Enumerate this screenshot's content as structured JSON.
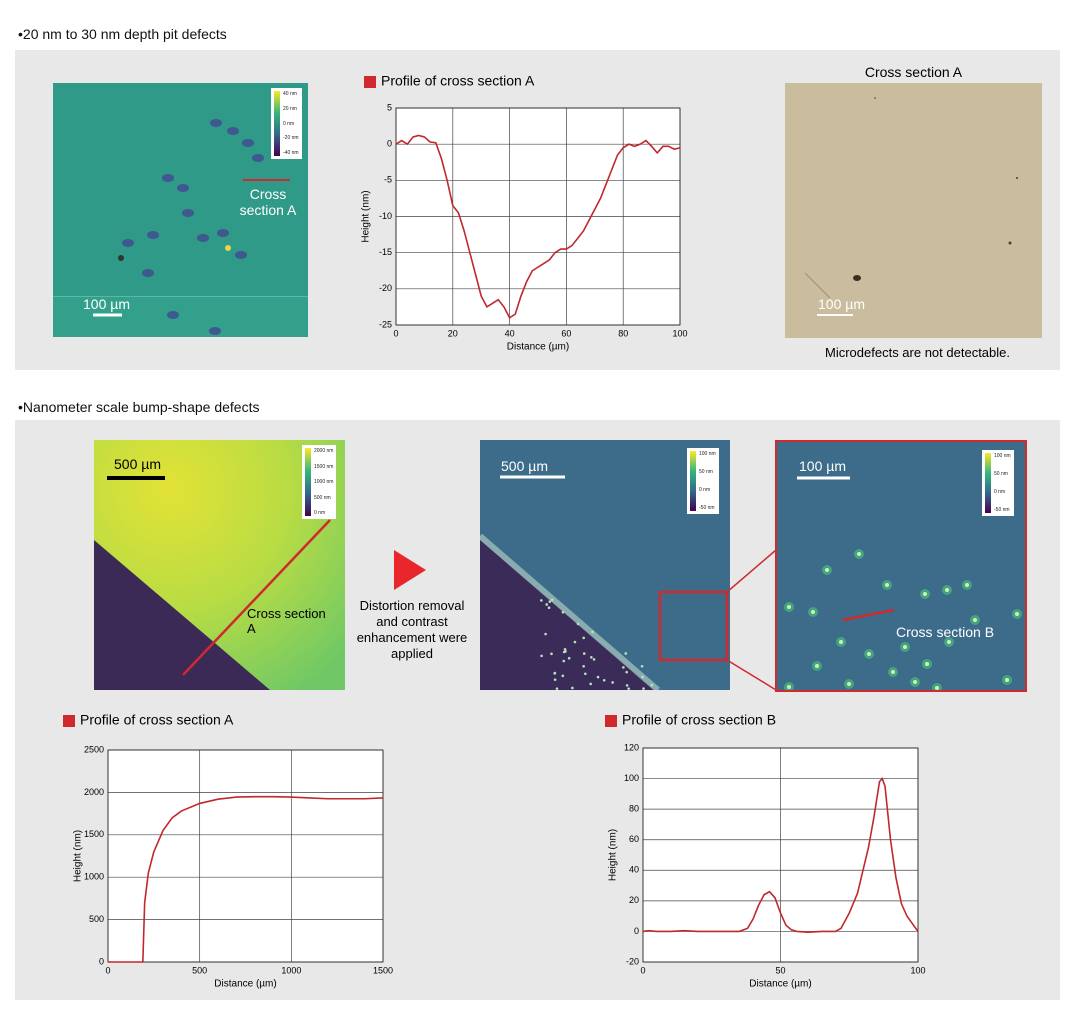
{
  "section1": {
    "heading": "•20 nm to 30 nm depth pit defects",
    "afm_image": {
      "colorbar": [
        "40 nm",
        "20 nm",
        "0 nm",
        "-20 nm",
        "-40 nm"
      ],
      "annotation": "Cross section A",
      "scale_bar": "100 µm"
    },
    "optical_image": {
      "title": "Cross section A",
      "scale_bar": "100 µm",
      "caption": "Microdefects are not detectable."
    }
  },
  "section2": {
    "heading": "•Nanometer scale bump-shape defects",
    "raw_image": {
      "colorbar": [
        "2000 nm",
        "1500 nm",
        "1000 nm",
        "500 nm",
        "0 nm"
      ],
      "annotation": "Cross section A",
      "scale_bar": "500 µm"
    },
    "process_note": "Distortion removal and contrast enhancement were applied",
    "processed_image": {
      "colorbar": [
        "100 nm",
        "50 nm",
        "0 nm",
        "-50 nm"
      ],
      "scale_bar": "500 µm"
    },
    "zoom_image": {
      "colorbar": [
        "100 nm",
        "50 nm",
        "0 nm",
        "-50 nm"
      ],
      "annotation": "Cross section B",
      "scale_bar": "100 µm"
    }
  },
  "chart_data": [
    {
      "type": "line",
      "title": "Profile of cross section A",
      "x_label": "Distance (µm)",
      "y_label": "Height (nm)",
      "color": "#c0282d",
      "grid": true,
      "x": [
        0,
        2,
        4,
        6,
        8,
        10,
        12,
        14,
        16,
        18,
        20,
        22,
        24,
        26,
        28,
        30,
        32,
        34,
        36,
        38,
        40,
        42,
        44,
        46,
        48,
        50,
        52,
        54,
        56,
        58,
        60,
        62,
        64,
        66,
        68,
        70,
        72,
        74,
        76,
        78,
        80,
        82,
        84,
        86,
        88,
        90,
        92,
        94,
        96,
        98,
        100
      ],
      "values": [
        0,
        0.5,
        0,
        1,
        1.2,
        1,
        0.3,
        0.2,
        -2,
        -5,
        -8.5,
        -9.5,
        -12,
        -15,
        -18,
        -21,
        -22.5,
        -22,
        -21.5,
        -22.5,
        -24,
        -23.5,
        -21,
        -19,
        -17.5,
        -17,
        -16.5,
        -16,
        -15,
        -14.5,
        -14.5,
        -14,
        -13,
        -12,
        -10.5,
        -9,
        -7.5,
        -5.5,
        -3.5,
        -1.5,
        -0.5,
        0,
        -0.3,
        0,
        0.5,
        -0.3,
        -1.2,
        -0.3,
        -0.3,
        -0.7,
        -0.5
      ],
      "xlim": [
        0,
        100
      ],
      "xticks": [
        0,
        20,
        40,
        60,
        80,
        100
      ],
      "ylim": [
        -25,
        5
      ],
      "yticks": [
        5,
        0,
        -5,
        -10,
        -15,
        -20,
        -25
      ]
    },
    {
      "type": "line",
      "title": "Profile of cross section A",
      "x_label": "Distance (µm)",
      "y_label": "Height (nm)",
      "color": "#c0282d",
      "grid": true,
      "x": [
        0,
        190,
        200,
        220,
        250,
        300,
        350,
        400,
        500,
        600,
        700,
        800,
        900,
        1000,
        1100,
        1200,
        1300,
        1400,
        1500
      ],
      "values": [
        0,
        0,
        700,
        1050,
        1300,
        1550,
        1700,
        1780,
        1870,
        1920,
        1945,
        1950,
        1950,
        1945,
        1935,
        1925,
        1925,
        1925,
        1935
      ],
      "xlim": [
        0,
        1500
      ],
      "xticks": [
        0,
        500,
        1000,
        1500
      ],
      "ylim": [
        0,
        2500
      ],
      "yticks": [
        0,
        500,
        1000,
        1500,
        2000,
        2500
      ]
    },
    {
      "type": "line",
      "title": "Profile of cross section B",
      "x_label": "Distance (µm)",
      "y_label": "Height (nm)",
      "color": "#c0282d",
      "grid": true,
      "x": [
        0,
        2,
        5,
        10,
        15,
        20,
        25,
        30,
        35,
        38,
        40,
        42,
        44,
        46,
        48,
        50,
        52,
        54,
        56,
        60,
        65,
        70,
        72,
        75,
        78,
        80,
        82,
        84,
        86,
        87,
        88,
        90,
        92,
        94,
        96,
        98,
        100
      ],
      "values": [
        0,
        0.5,
        0,
        0,
        0.5,
        0,
        0,
        0,
        0,
        2,
        8,
        17,
        24,
        26,
        22,
        12,
        4,
        1,
        0,
        -0.5,
        0,
        0,
        2,
        12,
        25,
        40,
        55,
        75,
        98,
        100,
        95,
        60,
        35,
        18,
        10,
        5,
        0
      ],
      "xlim": [
        0,
        100
      ],
      "xticks": [
        0,
        50,
        100
      ],
      "ylim": [
        -20,
        120
      ],
      "yticks": [
        -20,
        0,
        20,
        40,
        60,
        80,
        100,
        120
      ]
    }
  ]
}
